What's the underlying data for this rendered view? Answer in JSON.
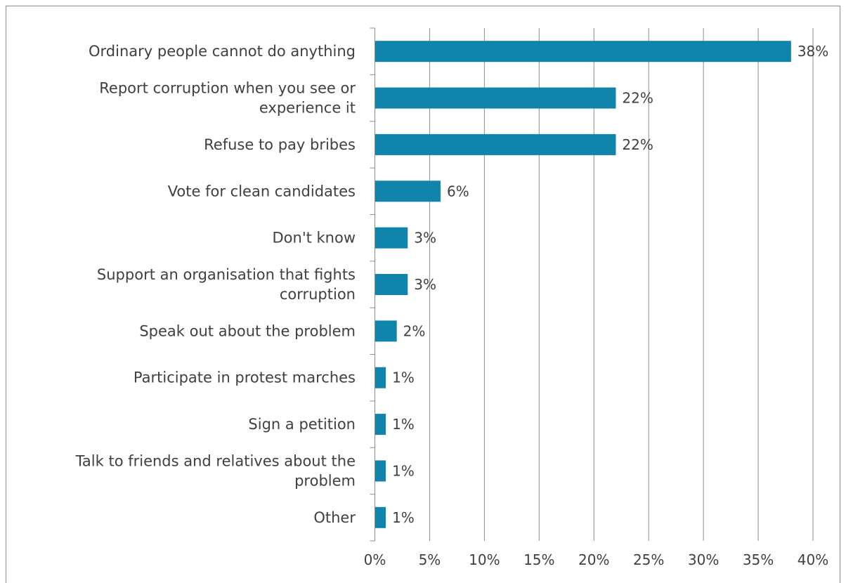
{
  "chart_data": {
    "type": "bar",
    "orientation": "horizontal",
    "categories": [
      "Ordinary people cannot do anything",
      "Report corruption when you see or experience it",
      "Refuse to pay bribes",
      "Vote for clean candidates",
      "Don't know",
      "Support an organisation that fights corruption",
      "Speak out about the problem",
      "Participate in protest marches",
      "Sign a petition",
      "Talk to friends and relatives about the problem",
      "Other"
    ],
    "category_lines": [
      [
        "Ordinary people cannot do anything"
      ],
      [
        "Report corruption when you see or",
        "experience it"
      ],
      [
        "Refuse to pay bribes"
      ],
      [
        "Vote for clean candidates"
      ],
      [
        "Don't know"
      ],
      [
        "Support an organisation that fights",
        "corruption"
      ],
      [
        "Speak out about the problem"
      ],
      [
        "Participate in protest marches"
      ],
      [
        "Sign a petition"
      ],
      [
        "Talk to friends and relatives about the",
        "problem"
      ],
      [
        "Other"
      ]
    ],
    "values": [
      38,
      22,
      22,
      6,
      3,
      3,
      2,
      1,
      1,
      1,
      1
    ],
    "value_labels": [
      "38%",
      "22%",
      "22%",
      "6%",
      "3%",
      "3%",
      "2%",
      "1%",
      "1%",
      "1%",
      "1%"
    ],
    "xlim": [
      0,
      40
    ],
    "xticks": [
      0,
      5,
      10,
      15,
      20,
      25,
      30,
      35,
      40
    ],
    "xtick_labels": [
      "0%",
      "5%",
      "10%",
      "15%",
      "20%",
      "25%",
      "30%",
      "35%",
      "40%"
    ],
    "grid": true,
    "title": "",
    "xlabel": "",
    "ylabel": ""
  },
  "colors": {
    "bar": "#1184ab",
    "grid": "#8c8c8c",
    "axis": "#8c8c8c",
    "text": "#404040"
  }
}
